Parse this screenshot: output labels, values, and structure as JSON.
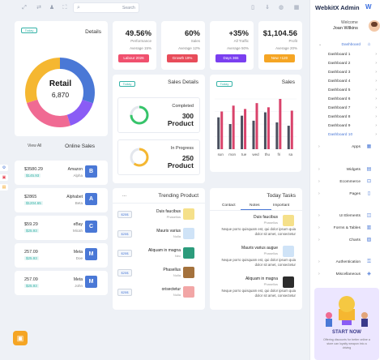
{
  "topbar": {
    "search_placeholder": "Search",
    "icons": [
      "expand-icon",
      "shuffle-icon",
      "bell-icon",
      "fullscreen-icon",
      "file-icon",
      "download-icon",
      "globe-icon",
      "grid-icon"
    ]
  },
  "stats": [
    {
      "value": "49.56%",
      "label": "Performance",
      "avg": "Average 15%",
      "button": "Labour 2026",
      "color": "#f0506e"
    },
    {
      "value": "60%",
      "label": "Sales",
      "avg": "Average 12%",
      "button": "Growth 19%",
      "color": "#e84c5a"
    },
    {
      "value": "+35%",
      "label": "All Traffic",
      "avg": "Average 50%",
      "button": "Days 365",
      "color": "#7a3ff0"
    },
    {
      "value": "$1,104.56",
      "label": "Profit",
      "avg": "Average 20%",
      "button": "New +120",
      "color": "#f5a524"
    }
  ],
  "details": {
    "badge": "Today",
    "title": "Details",
    "center_label": "Retail",
    "center_value": "6,870",
    "donut": [
      {
        "name": "blue",
        "value": 30,
        "color": "#4a78d6"
      },
      {
        "name": "purple",
        "value": 15,
        "color": "#8a5cf5"
      },
      {
        "name": "pink",
        "value": 25,
        "color": "#f06a93"
      },
      {
        "name": "yellow",
        "value": 30,
        "color": "#f5b731"
      }
    ]
  },
  "online_sales": {
    "view_all": "View All",
    "title": "Online Sales",
    "rows": [
      {
        "amount": "$3580.29",
        "pct": "$145.93",
        "company": "Amazon",
        "person": "Alpha",
        "letter": "B"
      },
      {
        "amount": "$2865",
        "pct": "$1204.65",
        "company": "Alphabet",
        "person": "Beta",
        "letter": "A"
      },
      {
        "amount": "$59.29",
        "pct": "$25.93",
        "company": "eBay",
        "person": "Micah",
        "letter": "C"
      },
      {
        "amount": "257.09",
        "pct": "$25.93",
        "company": "Meta",
        "person": "Doe",
        "letter": "M"
      },
      {
        "amount": "257.09",
        "pct": "$25.93",
        "company": "Meta",
        "person": "John",
        "letter": "M"
      }
    ]
  },
  "sales_details": {
    "badge": "Today",
    "title": "Sales Details",
    "completed_label": "Completed",
    "completed_value": "300",
    "completed_unit": "Product",
    "progress_label": "In Progress",
    "progress_value": "250",
    "progress_unit": "Product",
    "completed_color": "#36c46a",
    "progress_color": "#f5b731"
  },
  "sales": {
    "badge": "Today",
    "title": "Sales",
    "chart_data": {
      "type": "bar",
      "categories": [
        "sun",
        "mon",
        "tue",
        "wed",
        "thu",
        "fri",
        "sa"
      ],
      "series": [
        {
          "values": [
            38,
            30,
            40,
            34,
            44,
            32,
            28
          ]
        },
        {
          "values": [
            45,
            52,
            48,
            55,
            50,
            60,
            46
          ]
        }
      ],
      "colors": [
        "#4a4f5e",
        "#d9436b"
      ]
    }
  },
  "trending": {
    "more": "...",
    "title": "Trending Product",
    "rows": [
      {
        "tag": "$25$",
        "name": "Duis faucibus",
        "category": "Phasellus",
        "color": "#f5e08a"
      },
      {
        "tag": "$25$",
        "name": "Mauris varius",
        "category": "Nulla",
        "color": "#cfe3f7"
      },
      {
        "tag": "$25$",
        "name": "Aliquam in magna",
        "category": "Nec",
        "color": "#2c9c7c"
      },
      {
        "tag": "$25$",
        "name": "Phasellus",
        "category": "Nulla",
        "color": "#a4723d"
      },
      {
        "tag": "$25$",
        "name": "orisectetur",
        "category": "Nulla",
        "color": "#f2a6a6"
      }
    ]
  },
  "tasks": {
    "title": "Today Tasks",
    "tabs": [
      "Contact",
      "Notes",
      "Important"
    ],
    "items": [
      {
        "name": "Duis faucibus",
        "sub": "Phasellus",
        "desc": "Neque porro quisquam est, qui dolor ipsum quia dolor sit amet, consectetur",
        "color": "#f5e08a"
      },
      {
        "name": "Mauris varius augue",
        "sub": "Phasellus",
        "desc": "Neque porro quisquam est, qui dolor ipsum quia dolor sit amet, consectetur",
        "color": "#cfe3f7"
      },
      {
        "name": "Aliquam in magna",
        "sub": "Phasellus",
        "desc": "Neque porro quisquam est, qui dolor ipsum quia dolor sit amet, consectetur",
        "color": "#2c2c2c"
      }
    ]
  },
  "sidebar": {
    "brand": "WebkitX Admin",
    "welcome": "Welcome",
    "user": "Joan Wilkins",
    "dashboard": "Dashboard",
    "dashboards": [
      "Dashboard 1",
      "Dashboard 2",
      "Dashboard 3",
      "Dashboard 4",
      "Dashboard 5",
      "Dashboard 6",
      "Dashboard 7",
      "Dashboard 8",
      "Dashboard 9",
      "Dashboard 10"
    ],
    "groups": [
      {
        "label": "Apps",
        "icon": "grid-icon"
      },
      {
        "label": "Widgets",
        "icon": "widget-icon"
      },
      {
        "label": "Ecommerce",
        "icon": "cart-icon"
      },
      {
        "label": "Pages",
        "icon": "page-icon"
      },
      {
        "label": "UI Elements",
        "icon": "ui-icon"
      },
      {
        "label": "Forms & Tables",
        "icon": "form-icon"
      },
      {
        "label": "Charts",
        "icon": "chart-icon"
      },
      {
        "label": "Authentication",
        "icon": "lock-icon"
      },
      {
        "label": "Miscellaneous",
        "icon": "misc-icon"
      }
    ],
    "promo_title": "START NOW",
    "promo_desc": "Offering discounts for better online a store can loyalty weapon into a driving"
  }
}
